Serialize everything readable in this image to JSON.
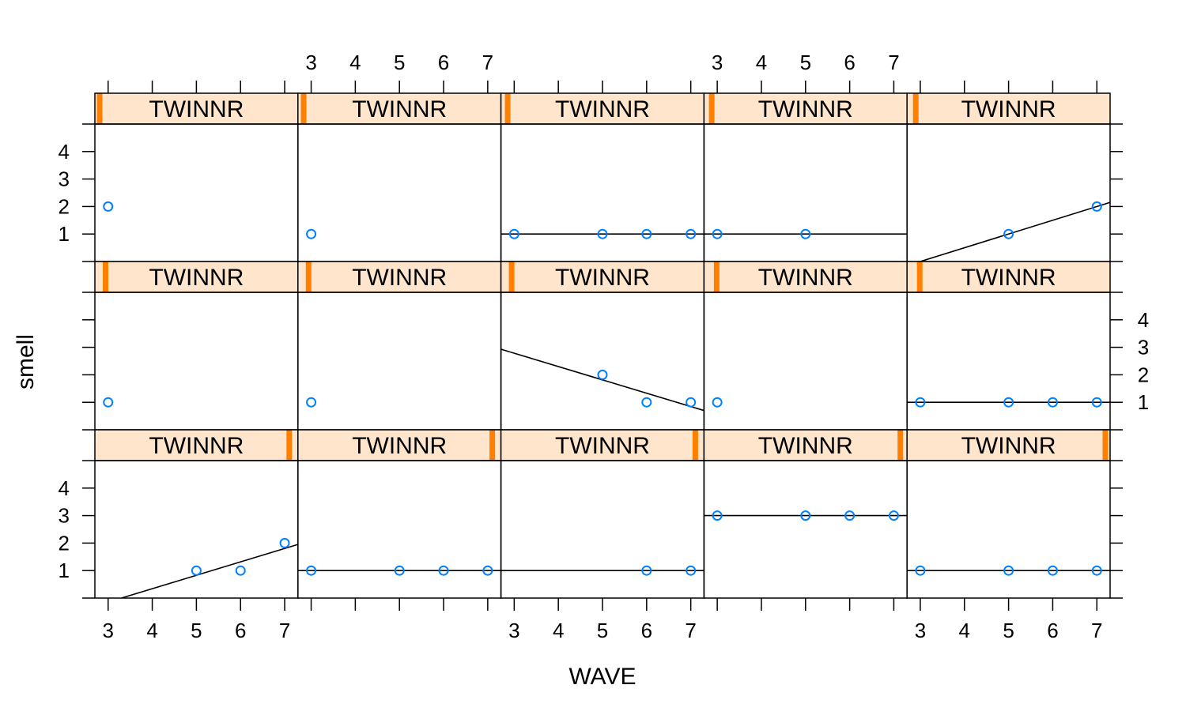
{
  "colors": {
    "strip_bg": "#FFE5CC",
    "strip_marker": "#FF7F00",
    "point": "#0080FF",
    "line": "#000000",
    "axis": "#000000",
    "background": "#FFFFFF"
  },
  "chart_data": {
    "type": "scatter",
    "subtype": "lattice-panels-with-regression-line",
    "xlabel": "WAVE",
    "ylabel": "smell",
    "strip_label": "TWINNR",
    "layout": {
      "rows": 3,
      "cols": 5
    },
    "xlim": [
      2.7,
      7.3
    ],
    "ylim": [
      0,
      5
    ],
    "x_ticks": [
      3,
      4,
      5,
      6,
      7
    ],
    "y_ticks": [
      1,
      2,
      3,
      4
    ],
    "panels": [
      {
        "row": 1,
        "col": 1,
        "strip_level": 0.01,
        "x": [
          3
        ],
        "y": [
          2
        ],
        "fit": null
      },
      {
        "row": 1,
        "col": 2,
        "strip_level": 0.015,
        "x": [
          3
        ],
        "y": [
          1
        ],
        "fit": null
      },
      {
        "row": 1,
        "col": 3,
        "strip_level": 0.02,
        "x": [
          3,
          5,
          6,
          7
        ],
        "y": [
          1,
          1,
          1,
          1
        ],
        "fit": {
          "x": [
            2.7,
            7.3
          ],
          "y": [
            1,
            1
          ]
        }
      },
      {
        "row": 1,
        "col": 4,
        "strip_level": 0.025,
        "x": [
          3,
          5
        ],
        "y": [
          1,
          1
        ],
        "fit": {
          "x": [
            2.7,
            7.3
          ],
          "y": [
            1,
            1
          ]
        }
      },
      {
        "row": 1,
        "col": 5,
        "strip_level": 0.03,
        "x": [
          5,
          7
        ],
        "y": [
          1,
          2
        ],
        "fit": {
          "x": [
            3,
            7.3
          ],
          "y": [
            0,
            2.15
          ]
        }
      },
      {
        "row": 2,
        "col": 1,
        "strip_level": 0.04,
        "x": [
          3
        ],
        "y": [
          1
        ],
        "fit": null
      },
      {
        "row": 2,
        "col": 2,
        "strip_level": 0.04,
        "x": [
          3
        ],
        "y": [
          1
        ],
        "fit": null
      },
      {
        "row": 2,
        "col": 3,
        "strip_level": 0.04,
        "x": [
          5,
          6,
          7
        ],
        "y": [
          2,
          1,
          1
        ],
        "fit": {
          "x": [
            2.7,
            7.3
          ],
          "y": [
            2.93,
            0.7
          ]
        }
      },
      {
        "row": 2,
        "col": 4,
        "strip_level": 0.05,
        "x": [
          3
        ],
        "y": [
          1
        ],
        "fit": null
      },
      {
        "row": 2,
        "col": 5,
        "strip_level": 0.05,
        "x": [
          3,
          5,
          6,
          7
        ],
        "y": [
          1,
          1,
          1,
          1
        ],
        "fit": {
          "x": [
            2.7,
            7.3
          ],
          "y": [
            1,
            1
          ]
        }
      },
      {
        "row": 3,
        "col": 1,
        "strip_level": 0.97,
        "x": [
          5,
          6,
          7
        ],
        "y": [
          1,
          1,
          2
        ],
        "fit": {
          "x": [
            3.3,
            7.3
          ],
          "y": [
            0,
            1.95
          ]
        }
      },
      {
        "row": 3,
        "col": 2,
        "strip_level": 0.97,
        "x": [
          3,
          5,
          6,
          7
        ],
        "y": [
          1,
          1,
          1,
          1
        ],
        "fit": {
          "x": [
            2.7,
            7.3
          ],
          "y": [
            1,
            1
          ]
        }
      },
      {
        "row": 3,
        "col": 3,
        "strip_level": 0.97,
        "x": [
          6,
          7
        ],
        "y": [
          1,
          1
        ],
        "fit": {
          "x": [
            2.7,
            7.3
          ],
          "y": [
            1,
            1
          ]
        }
      },
      {
        "row": 3,
        "col": 4,
        "strip_level": 0.98,
        "x": [
          3,
          5,
          6,
          7
        ],
        "y": [
          3,
          3,
          3,
          3
        ],
        "fit": {
          "x": [
            2.7,
            7.3
          ],
          "y": [
            3,
            3
          ]
        }
      },
      {
        "row": 3,
        "col": 5,
        "strip_level": 0.99,
        "x": [
          3,
          5,
          6,
          7
        ],
        "y": [
          1,
          1,
          1,
          1
        ],
        "fit": {
          "x": [
            2.7,
            7.3
          ],
          "y": [
            1,
            1
          ]
        }
      }
    ],
    "x_axis_labels": {
      "top_cols": [
        2,
        4
      ],
      "bottom_cols": [
        1,
        3,
        5
      ]
    },
    "y_axis_labels": {
      "left_rows": [
        1,
        3
      ],
      "right_rows": [
        2
      ]
    }
  }
}
